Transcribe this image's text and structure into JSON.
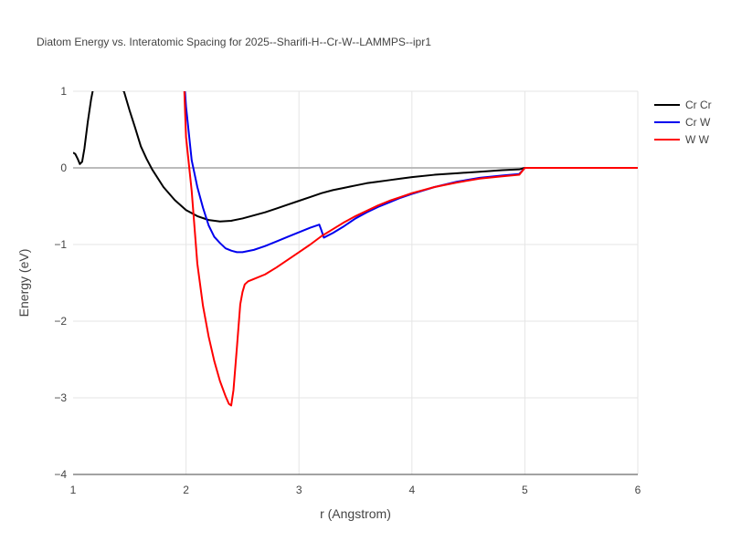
{
  "chart_data": {
    "type": "line",
    "title": "Diatom Energy vs. Interatomic Spacing for 2025--Sharifi-H--Cr-W--LAMMPS--ipr1",
    "xlabel": "r (Angstrom)",
    "ylabel": "Energy (eV)",
    "xlim": [
      1,
      6
    ],
    "ylim": [
      -4,
      1
    ],
    "xticks": [
      1,
      2,
      3,
      4,
      5,
      6
    ],
    "yticks": [
      1,
      0,
      -1,
      -2,
      -3,
      -4
    ],
    "xtick_labels": [
      "1",
      "2",
      "3",
      "4",
      "5",
      "6"
    ],
    "ytick_labels": [
      "1",
      "0",
      "−1",
      "−2",
      "−3",
      "−4"
    ],
    "grid": true,
    "legend_position": "top-right",
    "series": [
      {
        "name": "Cr Cr",
        "color": "#000000",
        "x": [
          1.0,
          1.02,
          1.04,
          1.06,
          1.08,
          1.1,
          1.13,
          1.16,
          1.18,
          1.2,
          1.45,
          1.5,
          1.55,
          1.6,
          1.65,
          1.7,
          1.8,
          1.9,
          2.0,
          2.1,
          2.2,
          2.3,
          2.4,
          2.5,
          2.6,
          2.7,
          2.8,
          2.9,
          3.0,
          3.1,
          3.2,
          3.3,
          3.4,
          3.5,
          3.6,
          3.7,
          3.8,
          3.9,
          4.0,
          4.2,
          4.4,
          4.6,
          4.8,
          4.95,
          5.0,
          5.5,
          6.0
        ],
        "y": [
          0.2,
          0.18,
          0.12,
          0.05,
          0.08,
          0.25,
          0.6,
          0.9,
          1.05,
          1.2,
          1.0,
          0.75,
          0.52,
          0.28,
          0.12,
          -0.02,
          -0.25,
          -0.42,
          -0.55,
          -0.63,
          -0.68,
          -0.7,
          -0.69,
          -0.66,
          -0.62,
          -0.58,
          -0.53,
          -0.48,
          -0.43,
          -0.38,
          -0.33,
          -0.29,
          -0.26,
          -0.23,
          -0.2,
          -0.18,
          -0.16,
          -0.14,
          -0.12,
          -0.09,
          -0.07,
          -0.05,
          -0.03,
          -0.02,
          0.0,
          0.0,
          0.0
        ]
      },
      {
        "name": "Cr W",
        "color": "#0000ee",
        "x": [
          1.98,
          2.0,
          2.05,
          2.1,
          2.15,
          2.2,
          2.25,
          2.3,
          2.35,
          2.4,
          2.45,
          2.5,
          2.6,
          2.7,
          2.8,
          2.9,
          3.0,
          3.1,
          3.18,
          3.2,
          3.22,
          3.3,
          3.4,
          3.5,
          3.6,
          3.7,
          3.8,
          3.9,
          4.0,
          4.2,
          4.4,
          4.6,
          4.8,
          4.95,
          5.0,
          5.5,
          6.0
        ],
        "y": [
          1.2,
          0.8,
          0.1,
          -0.25,
          -0.52,
          -0.75,
          -0.9,
          -0.98,
          -1.05,
          -1.08,
          -1.1,
          -1.1,
          -1.07,
          -1.02,
          -0.96,
          -0.9,
          -0.84,
          -0.78,
          -0.74,
          -0.82,
          -0.91,
          -0.85,
          -0.76,
          -0.66,
          -0.58,
          -0.51,
          -0.45,
          -0.39,
          -0.34,
          -0.25,
          -0.18,
          -0.13,
          -0.1,
          -0.08,
          0.0,
          0.0,
          0.0
        ]
      },
      {
        "name": "W W",
        "color": "#ff0000",
        "x": [
          1.98,
          2.0,
          2.05,
          2.1,
          2.15,
          2.2,
          2.25,
          2.3,
          2.35,
          2.38,
          2.4,
          2.42,
          2.45,
          2.48,
          2.5,
          2.52,
          2.55,
          2.6,
          2.7,
          2.8,
          2.9,
          3.0,
          3.1,
          3.2,
          3.3,
          3.4,
          3.5,
          3.6,
          3.7,
          3.8,
          3.9,
          4.0,
          4.2,
          4.4,
          4.6,
          4.8,
          4.95,
          5.0,
          5.5,
          6.0
        ],
        "y": [
          1.2,
          0.4,
          -0.3,
          -1.25,
          -1.8,
          -2.2,
          -2.52,
          -2.78,
          -2.98,
          -3.08,
          -3.1,
          -2.9,
          -2.35,
          -1.78,
          -1.62,
          -1.52,
          -1.48,
          -1.45,
          -1.39,
          -1.3,
          -1.2,
          -1.1,
          -1.0,
          -0.89,
          -0.8,
          -0.71,
          -0.63,
          -0.56,
          -0.49,
          -0.43,
          -0.38,
          -0.33,
          -0.25,
          -0.19,
          -0.14,
          -0.11,
          -0.09,
          0.0,
          0.0,
          0.0
        ]
      }
    ]
  }
}
